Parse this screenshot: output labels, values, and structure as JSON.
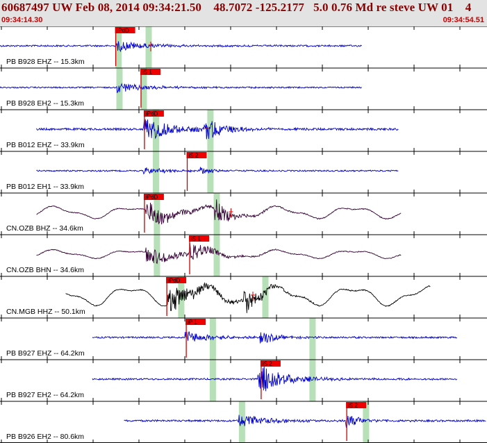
{
  "header": {
    "title": "60687497 UW Feb 08, 2014 09:34:21.50    48.7072 -125.2177   5.0 0.76 Md re steve UW 01    4",
    "start_time": "09:34:14.30",
    "end_time": "09:34:54.51"
  },
  "colors": {
    "header_bg": "#e3e3e3",
    "title": "#8b0000",
    "time": "#cc0000",
    "blue_trace": "#0000cc",
    "purple_trace": "#330033",
    "black_trace": "#000000",
    "pick_flag": "#ee0000",
    "window_band": "#b8e0b8"
  },
  "chart_data": {
    "type": "seismogram",
    "x_range": [
      "09:34:14.30",
      "09:34:54.51"
    ],
    "traces": [
      {
        "label": "PB B928 EHZ -- 15.3km",
        "color": "blue",
        "style": "hf",
        "start": 0.0,
        "end": 0.745,
        "onset": 0.24,
        "amp": 7,
        "base_amp": 1.2,
        "pick": {
          "label": "iPdD",
          "x": 0.238
        },
        "bands": [
          0.243,
          0.305
        ],
        "coda_marker": 0.31
      },
      {
        "label": "PB B928 EH2 -- 15.3km",
        "color": "blue",
        "style": "hf",
        "start": 0.0,
        "end": 0.745,
        "onset": 0.24,
        "amp": 7,
        "base_amp": 1.0,
        "pick": {
          "label": "iS 1",
          "x": 0.29
        },
        "bands": [
          0.245,
          0.295
        ]
      },
      {
        "label": "PB B012 EHZ -- 33.9km",
        "color": "blue",
        "style": "hf",
        "start": 0.075,
        "end": 0.82,
        "onset": 0.295,
        "amp": 16,
        "base_amp": 1.5,
        "second": 0.42,
        "pick": {
          "label": "iPdD",
          "x": 0.297
        },
        "bands": [
          0.32,
          0.432
        ],
        "coda_marker": 0.425
      },
      {
        "label": "PB B012 EH1 -- 33.9km",
        "color": "blue",
        "style": "hf",
        "start": 0.075,
        "end": 0.82,
        "onset": 0.295,
        "amp": 4,
        "base_amp": 1.0,
        "second": 0.41,
        "pick": {
          "label": "iS 2",
          "x": 0.385
        },
        "bands": [
          0.32,
          0.432
        ]
      },
      {
        "label": "CN.OZB BHZ -- 34.6km",
        "color": "purple",
        "style": "lf",
        "start": 0.075,
        "end": 0.825,
        "onset": 0.3,
        "amp": 14,
        "base_amp": 10,
        "second": 0.44,
        "pick": {
          "label": "iPdD",
          "x": 0.297
        },
        "bands": [
          0.322,
          0.445
        ],
        "coda_marker": 0.475
      },
      {
        "label": "CN.OZB BHN -- 34.6km",
        "color": "purple",
        "style": "lf",
        "start": 0.075,
        "end": 0.825,
        "onset": 0.3,
        "amp": 12,
        "base_amp": 7,
        "second": 0.39,
        "pick": {
          "label": "iS 1",
          "x": 0.39
        },
        "bands": [
          0.322,
          0.445
        ]
      },
      {
        "label": "CN.MGB HHZ -- 50.1km",
        "color": "black",
        "style": "lf",
        "start": 0.135,
        "end": 0.885,
        "onset": 0.345,
        "amp": 18,
        "base_amp": 16,
        "second": 0.5,
        "pick": {
          "label": "iPdD",
          "x": 0.343
        },
        "bands": [
          0.372,
          0.545
        ],
        "coda_marker": 0.52
      },
      {
        "label": "PB B927 EHZ -- 64.2km",
        "color": "blue",
        "style": "hf",
        "start": 0.19,
        "end": 0.94,
        "onset": 0.38,
        "amp": 8,
        "base_amp": 1.2,
        "second": 0.535,
        "pick": {
          "label": "iP 1",
          "x": 0.383
        },
        "bands": [
          0.437,
          0.642
        ]
      },
      {
        "label": "PB B927 EH2 -- 64.2km",
        "color": "blue",
        "style": "hf",
        "start": 0.19,
        "end": 0.94,
        "onset": 0.53,
        "amp": 12,
        "base_amp": 1.2,
        "second": 0.54,
        "pick": {
          "label": "iS 2",
          "x": 0.537
        },
        "bands": [
          0.437,
          0.642
        ]
      },
      {
        "label": "PB B926 EH2 -- 80.6km",
        "color": "blue",
        "style": "hf",
        "start": 0.255,
        "end": 1.0,
        "onset": 0.49,
        "amp": 9,
        "base_amp": 1.3,
        "second": 0.71,
        "pick": {
          "label": "iS 2",
          "x": 0.713
        },
        "bands": [
          0.497,
          0.752
        ]
      }
    ]
  }
}
